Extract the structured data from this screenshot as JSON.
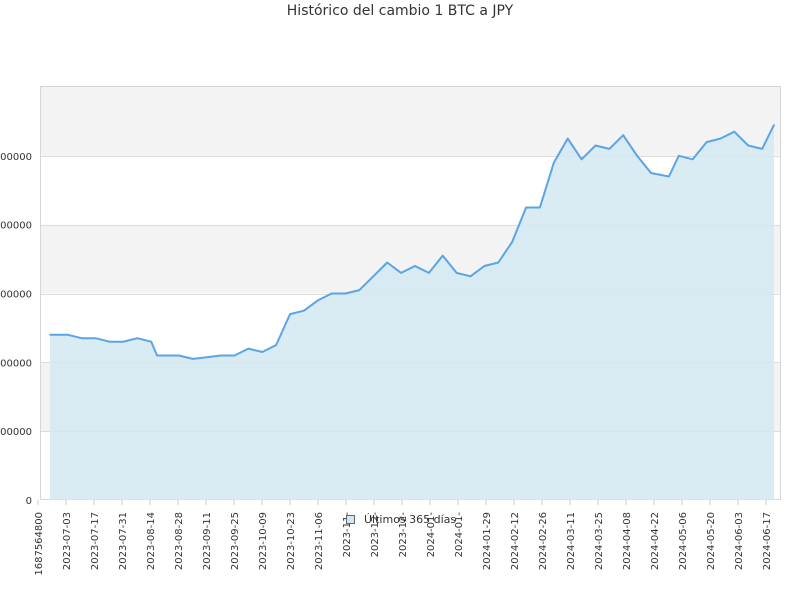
{
  "chart_data": {
    "type": "area",
    "title": "Histórico del cambio 1 BTC a JPY",
    "xlabel": "",
    "ylabel": "",
    "grid": true,
    "legend_position": "bottom-center",
    "legend": "Últimos 365 días",
    "ylim": [
      0,
      12000000
    ],
    "y_ticks": [
      {
        "value": 0,
        "label": "0"
      },
      {
        "value": 2000000,
        "label": "000000"
      },
      {
        "value": 4000000,
        "label": "000000"
      },
      {
        "value": 6000000,
        "label": "000000"
      },
      {
        "value": 8000000,
        "label": "000000"
      },
      {
        "value": 10000000,
        "label": "000000"
      }
    ],
    "x_ticks": [
      "1687564800",
      "2023-07-03",
      "2023-07-17",
      "2023-07-31",
      "2023-08-14",
      "2023-08-28",
      "2023-09-11",
      "2023-09-25",
      "2023-10-09",
      "2023-10-23",
      "2023-11-06",
      "2023-11-",
      "2023-12-",
      "2023-12-",
      "2024-01-",
      "2024-01-",
      "2024-01-29",
      "2024-02-12",
      "2024-02-26",
      "2024-03-11",
      "2024-03-25",
      "2024-04-08",
      "2024-04-22",
      "2024-05-06",
      "2024-05-20",
      "2024-06-03",
      "2024-06-17"
    ],
    "series": [
      {
        "name": "Últimos 365 días",
        "color": "#5ba4e5",
        "fill": "#d2e7f1",
        "x": [
          "2023-06-24",
          "2023-07-03",
          "2023-07-10",
          "2023-07-17",
          "2023-07-24",
          "2023-07-31",
          "2023-08-07",
          "2023-08-14",
          "2023-08-17",
          "2023-08-21",
          "2023-08-28",
          "2023-09-04",
          "2023-09-11",
          "2023-09-18",
          "2023-09-25",
          "2023-10-02",
          "2023-10-09",
          "2023-10-16",
          "2023-10-23",
          "2023-10-30",
          "2023-11-06",
          "2023-11-13",
          "2023-11-20",
          "2023-11-27",
          "2023-12-04",
          "2023-12-11",
          "2023-12-18",
          "2023-12-25",
          "2024-01-01",
          "2024-01-08",
          "2024-01-15",
          "2024-01-22",
          "2024-01-29",
          "2024-02-05",
          "2024-02-12",
          "2024-02-19",
          "2024-02-26",
          "2024-03-04",
          "2024-03-11",
          "2024-03-18",
          "2024-03-25",
          "2024-04-01",
          "2024-04-08",
          "2024-04-15",
          "2024-04-22",
          "2024-05-01",
          "2024-05-06",
          "2024-05-13",
          "2024-05-20",
          "2024-05-27",
          "2024-06-03",
          "2024-06-10",
          "2024-06-17",
          "2024-06-23"
        ],
        "values": [
          4800000,
          4800000,
          4700000,
          4700000,
          4600000,
          4600000,
          4700000,
          4600000,
          4200000,
          4200000,
          4200000,
          4100000,
          4150000,
          4200000,
          4200000,
          4400000,
          4300000,
          4500000,
          5400000,
          5500000,
          5800000,
          6000000,
          6000000,
          6100000,
          6500000,
          6900000,
          6600000,
          6800000,
          6600000,
          7100000,
          6600000,
          6500000,
          6800000,
          6900000,
          7500000,
          8500000,
          8500000,
          9800000,
          10500000,
          9900000,
          10300000,
          10200000,
          10600000,
          10000000,
          9500000,
          9400000,
          10000000,
          9900000,
          10400000,
          10500000,
          10700000,
          10300000,
          10200000,
          10900000
        ]
      }
    ]
  }
}
